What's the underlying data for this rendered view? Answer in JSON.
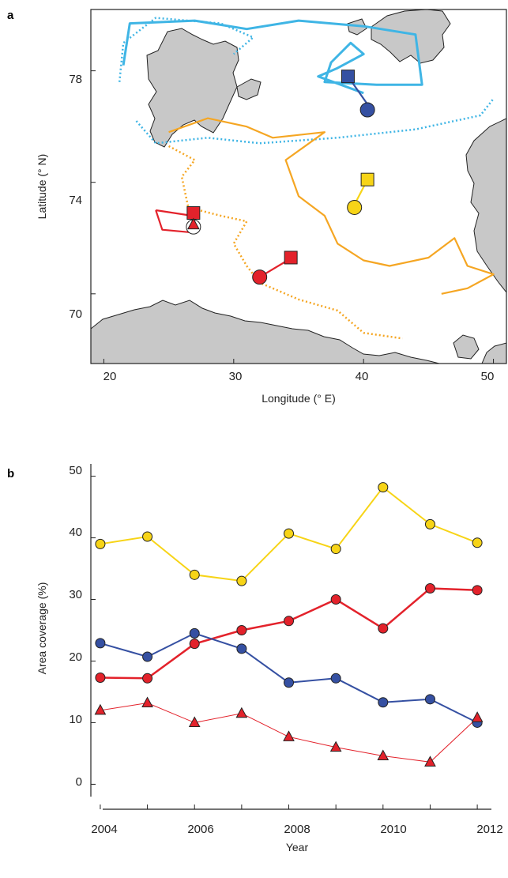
{
  "panel_a": {
    "label": "a",
    "xlabel": "Longitude (° E)",
    "ylabel": "Latitude (° N)",
    "x_ticks": [
      "20",
      "30",
      "40",
      "50"
    ],
    "y_ticks": [
      "78",
      "74",
      "70"
    ]
  },
  "panel_b": {
    "label": "b",
    "xlabel": "Year",
    "ylabel": "Area coverage (%)",
    "x_ticks": [
      "2004",
      "2006",
      "2008",
      "2010",
      "2012"
    ],
    "y_ticks": [
      "0",
      "10",
      "20",
      "30",
      "40",
      "50"
    ]
  },
  "colors": {
    "yellow": "#f7d417",
    "red": "#e3222b",
    "blue": "#3550a2",
    "orange": "#f5a623",
    "cyan": "#3fb5e5",
    "land": "#c8c8c8"
  },
  "chart_data": [
    {
      "type": "map",
      "xlim": [
        19,
        51
      ],
      "ylim": [
        67.5,
        80.2
      ],
      "tracks": [
        {
          "color": "cyan",
          "style": "solid",
          "points": [
            [
              21.5,
              78.2
            ],
            [
              22,
              79.7
            ],
            [
              27,
              79.8
            ],
            [
              31,
              79.5
            ],
            [
              35,
              79.8
            ],
            [
              40,
              79.6
            ],
            [
              44,
              79.3
            ],
            [
              44.5,
              77.5
            ],
            [
              41,
              77.5
            ],
            [
              37,
              77.6
            ],
            [
              37.5,
              78.3
            ],
            [
              39,
              79
            ],
            [
              40,
              78.6
            ],
            [
              38,
              78.1
            ],
            [
              36.5,
              77.8
            ],
            [
              40,
              77.2
            ]
          ]
        },
        {
          "color": "cyan",
          "style": "dotted",
          "points": [
            [
              21.2,
              77.6
            ],
            [
              21.5,
              79.0
            ],
            [
              24,
              79.9
            ],
            [
              29,
              79.7
            ],
            [
              31.5,
              79.2
            ],
            [
              30,
              78.6
            ]
          ]
        },
        {
          "color": "cyan",
          "style": "dotted",
          "points": [
            [
              22.5,
              76.2
            ],
            [
              24,
              75.4
            ],
            [
              28,
              75.6
            ],
            [
              32,
              75.4
            ],
            [
              38,
              75.6
            ],
            [
              44,
              75.9
            ],
            [
              49,
              76.4
            ],
            [
              50,
              77.0
            ]
          ]
        },
        {
          "color": "orange",
          "style": "solid",
          "points": [
            [
              25,
              75.8
            ],
            [
              28,
              76.3
            ],
            [
              31,
              76.0
            ],
            [
              33,
              75.6
            ],
            [
              37,
              75.8
            ],
            [
              34,
              74.8
            ],
            [
              35,
              73.5
            ],
            [
              37,
              72.8
            ],
            [
              38,
              71.8
            ],
            [
              40,
              71.2
            ],
            [
              42,
              71.0
            ],
            [
              45,
              71.3
            ],
            [
              47,
              72.0
            ],
            [
              48,
              71.0
            ],
            [
              50,
              70.7
            ],
            [
              48,
              70.2
            ],
            [
              46,
              70.0
            ]
          ]
        },
        {
          "color": "orange",
          "style": "dotted",
          "points": [
            [
              25,
              75.3
            ],
            [
              27,
              74.8
            ],
            [
              26,
              74.2
            ],
            [
              26.5,
              73.1
            ],
            [
              29,
              72.8
            ],
            [
              31,
              72.6
            ],
            [
              30,
              71.8
            ],
            [
              31,
              71.0
            ],
            [
              32,
              70.4
            ],
            [
              35,
              69.8
            ],
            [
              38,
              69.4
            ],
            [
              40,
              68.6
            ],
            [
              43,
              68.4
            ]
          ]
        },
        {
          "color": "red",
          "style": "solid",
          "points": [
            [
              24,
              73.0
            ],
            [
              26.8,
              72.8
            ],
            [
              26.8,
              72.2
            ],
            [
              24.5,
              72.3
            ],
            [
              24,
              73.0
            ]
          ]
        },
        {
          "color": "red",
          "style": "solid",
          "points": [
            [
              32,
              70.6
            ],
            [
              34.5,
              71.3
            ]
          ]
        },
        {
          "color": "blue",
          "style": "solid",
          "points": [
            [
              38.8,
              77.8
            ],
            [
              40.3,
              76.8
            ]
          ]
        },
        {
          "color": "yellow",
          "style": "solid",
          "points": [
            [
              40.3,
              74.1
            ],
            [
              39.3,
              73.2
            ]
          ]
        }
      ],
      "markers": [
        {
          "shape": "square",
          "color": "blue",
          "lon": 38.8,
          "lat": 77.8
        },
        {
          "shape": "circle",
          "color": "blue",
          "lon": 40.3,
          "lat": 76.6
        },
        {
          "shape": "square",
          "color": "yellow",
          "lon": 40.3,
          "lat": 74.1
        },
        {
          "shape": "circle",
          "color": "yellow",
          "lon": 39.3,
          "lat": 73.1
        },
        {
          "shape": "square",
          "color": "red",
          "lon": 26.9,
          "lat": 72.9
        },
        {
          "shape": "circle",
          "color": "white",
          "lon": 26.9,
          "lat": 72.4
        },
        {
          "shape": "triangle",
          "color": "red",
          "lon": 26.9,
          "lat": 72.5
        },
        {
          "shape": "square",
          "color": "red",
          "lon": 34.4,
          "lat": 71.3
        },
        {
          "shape": "circle",
          "color": "red",
          "lon": 32.0,
          "lat": 70.6
        }
      ]
    },
    {
      "type": "line",
      "x": [
        2004,
        2005,
        2006,
        2007,
        2008,
        2009,
        2010,
        2011,
        2012
      ],
      "xlim": [
        2003.8,
        2012.3
      ],
      "ylim": [
        -2,
        52
      ],
      "series": [
        {
          "color": "yellow",
          "marker": "circle",
          "width": 2,
          "values": [
            39,
            40.2,
            34,
            33,
            40.7,
            38.2,
            48.2,
            42.2,
            39.2
          ]
        },
        {
          "color": "red",
          "marker": "circle",
          "width": 2.5,
          "values": [
            17.3,
            17.2,
            22.8,
            25,
            26.5,
            30,
            25.3,
            31.8,
            31.5
          ]
        },
        {
          "color": "blue",
          "marker": "circle",
          "width": 2,
          "values": [
            22.9,
            20.7,
            24.5,
            22,
            16.5,
            17.2,
            13.3,
            13.8,
            10
          ]
        },
        {
          "color": "red",
          "marker": "triangle",
          "width": 1,
          "values": [
            12,
            13.2,
            10,
            11.5,
            7.7,
            6,
            4.6,
            3.6,
            10.8
          ]
        }
      ]
    }
  ]
}
